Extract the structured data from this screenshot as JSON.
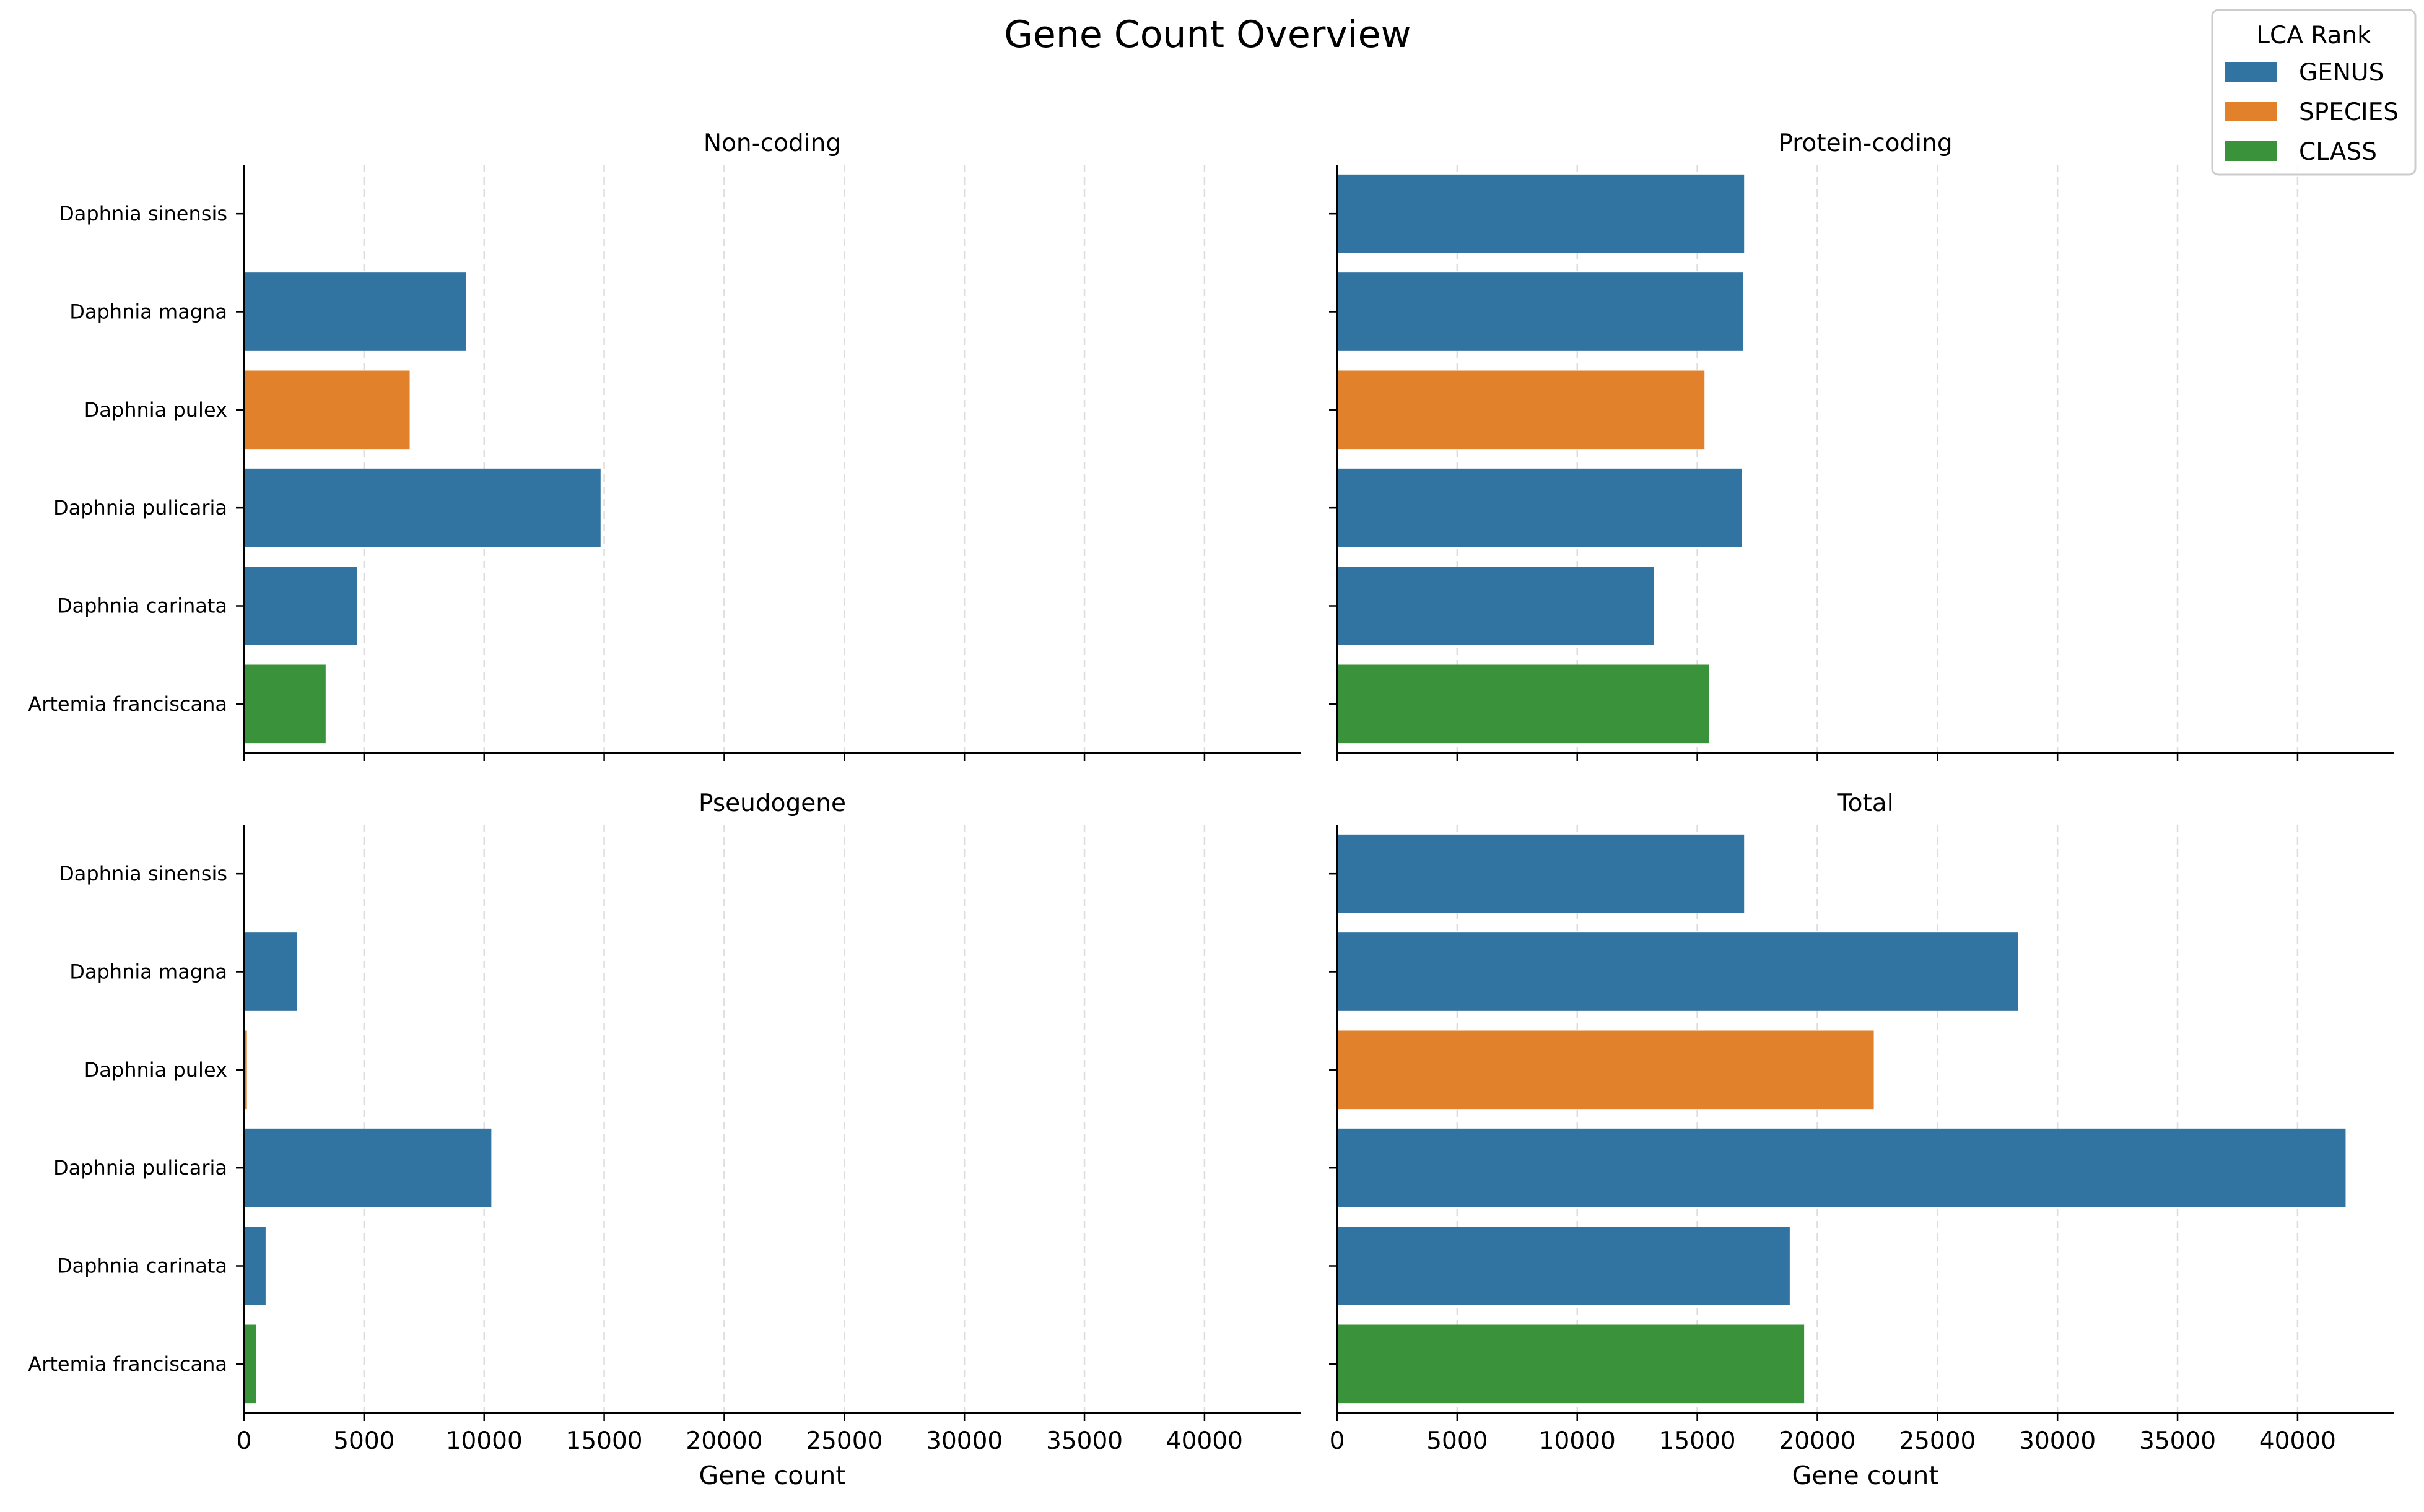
{
  "chart_data": {
    "type": "bar",
    "orientation": "horizontal",
    "title": "Gene Count Overview",
    "categories": [
      "Daphnia sinensis",
      "Daphnia magna",
      "Daphnia pulex",
      "Daphnia pulicaria",
      "Daphnia carinata",
      "Artemia franciscana"
    ],
    "category_rank": [
      "GENUS",
      "GENUS",
      "SPECIES",
      "GENUS",
      "GENUS",
      "CLASS"
    ],
    "legend": {
      "title": "LCA Rank",
      "position": "top-right",
      "entries": [
        {
          "label": "GENUS",
          "color": "#3274a1"
        },
        {
          "label": "SPECIES",
          "color": "#e1812c"
        },
        {
          "label": "CLASS",
          "color": "#3a923a"
        }
      ]
    },
    "xlim": [
      0,
      44000
    ],
    "xticks": [
      0,
      5000,
      10000,
      15000,
      20000,
      25000,
      30000,
      35000,
      40000
    ],
    "xlabel": "Gene count",
    "grid": "x, dashed",
    "panels": [
      {
        "title": "Non-coding",
        "values": [
          0,
          9250,
          6900,
          14850,
          4700,
          3400
        ]
      },
      {
        "title": "Protein-coding",
        "values": [
          16950,
          16900,
          15300,
          16850,
          13200,
          15500
        ]
      },
      {
        "title": "Pseudogene",
        "values": [
          0,
          2200,
          120,
          10300,
          900,
          500
        ]
      },
      {
        "title": "Total",
        "values": [
          16950,
          28350,
          22350,
          42000,
          18850,
          19450
        ]
      }
    ]
  }
}
